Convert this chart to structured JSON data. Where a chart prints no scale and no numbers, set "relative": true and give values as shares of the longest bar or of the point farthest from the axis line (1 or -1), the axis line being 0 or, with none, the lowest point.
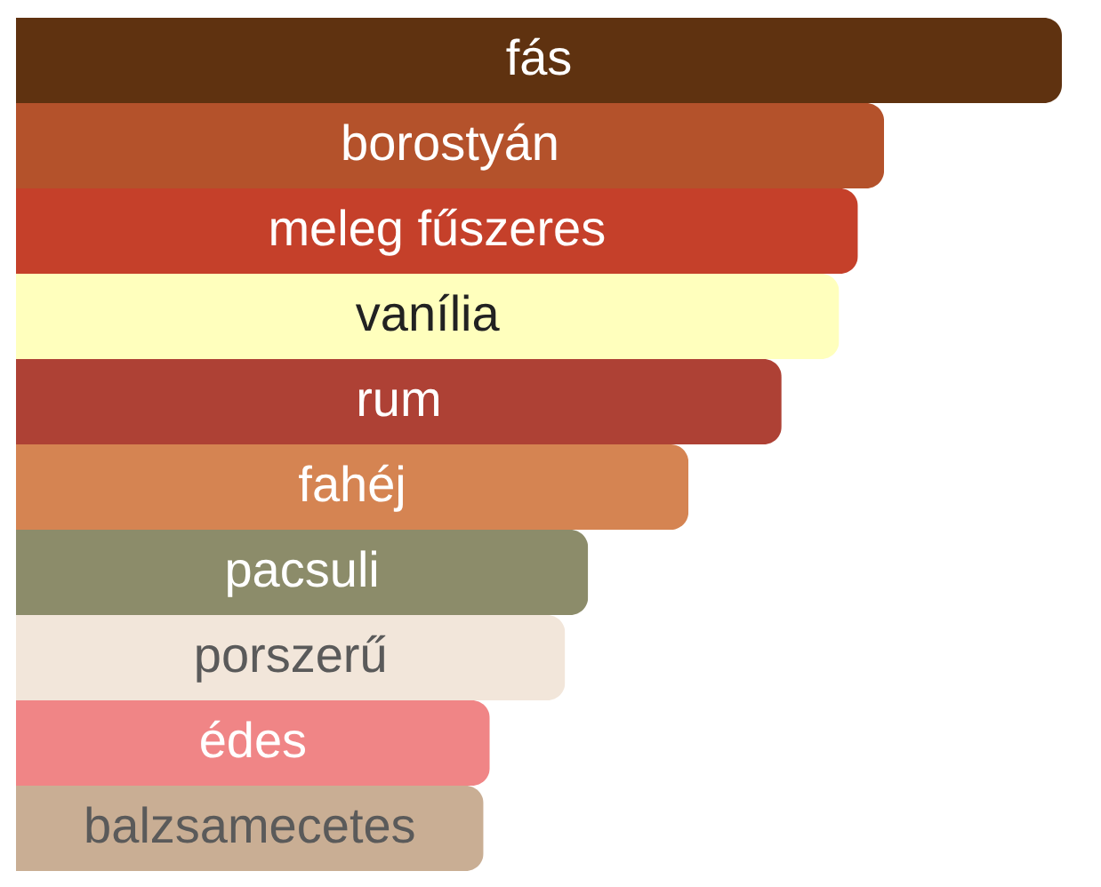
{
  "chart_data": {
    "type": "bar",
    "orientation": "horizontal",
    "relative": true,
    "categories": [
      "fás",
      "borostyán",
      "meleg fűszeres",
      "vanília",
      "rum",
      "fahéj",
      "pacsuli",
      "porszerű",
      "édes",
      "balzsamecetes"
    ],
    "values": [
      1,
      0.83,
      0.805,
      0.787,
      0.732,
      0.643,
      0.547,
      0.525,
      0.453,
      0.447
    ],
    "colors": [
      "#5f3210",
      "#b4522b",
      "#c5402a",
      "#ffffbd",
      "#ae4135",
      "#d58452",
      "#8c8c6a",
      "#f2e6da",
      "#f08586",
      "#c9ae94"
    ]
  }
}
